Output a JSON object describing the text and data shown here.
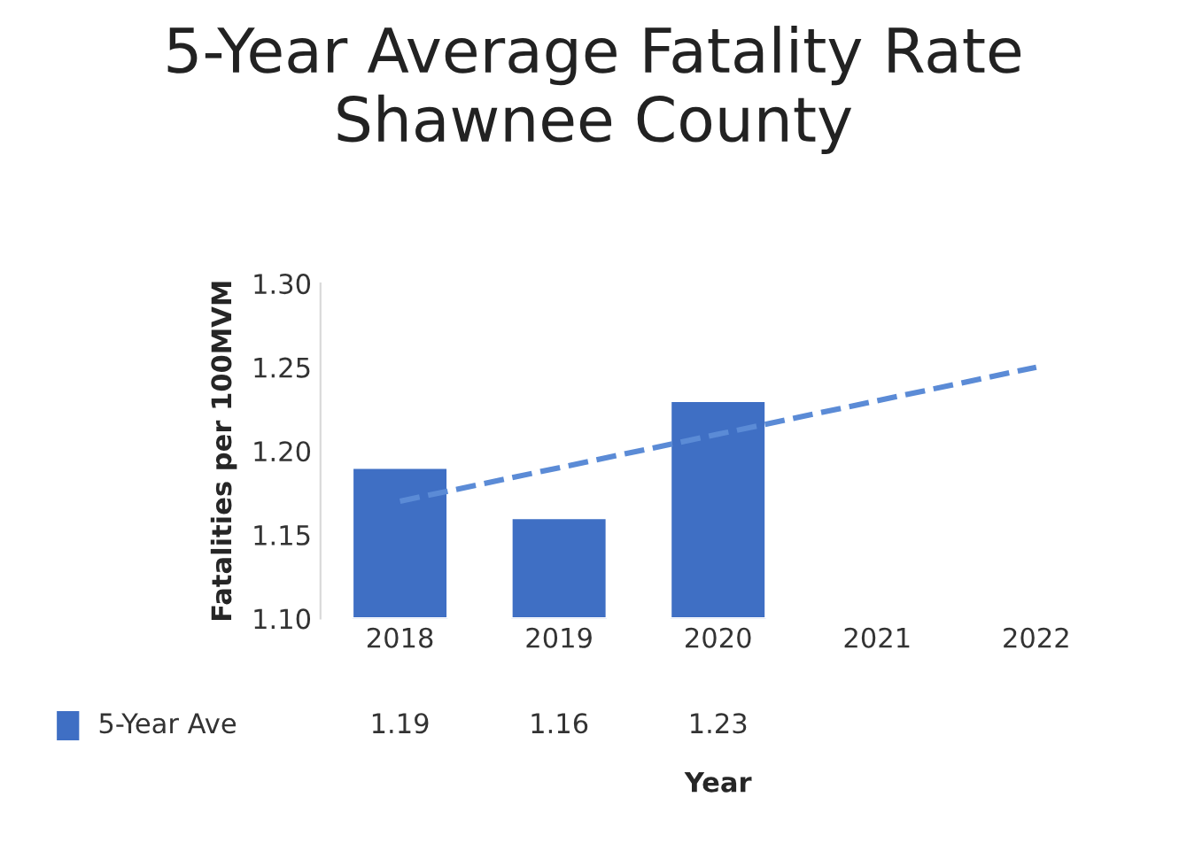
{
  "chart_data": {
    "type": "bar",
    "title": "5-Year Average Fatality Rate\nShawnee County",
    "xlabel": "Year",
    "ylabel": "Fatalities per 100MVM",
    "categories": [
      "2018",
      "2019",
      "2020",
      "2021",
      "2022"
    ],
    "series": [
      {
        "name": "5-Year Ave",
        "color": "#3f6fc4",
        "values": [
          1.19,
          1.16,
          1.23,
          null,
          null
        ],
        "value_labels": [
          "1.19",
          "1.16",
          "1.23",
          null,
          null
        ]
      },
      {
        "type": "line",
        "color": "#5b8bd6",
        "line_style": "dashed",
        "values": [
          1.17,
          1.19,
          1.21,
          1.23,
          1.25
        ]
      }
    ],
    "ylim": [
      1.1,
      1.3
    ],
    "yticks": [
      "1.10",
      "1.15",
      "1.20",
      "1.25",
      "1.30"
    ],
    "grid": false,
    "legend": "bottom"
  }
}
